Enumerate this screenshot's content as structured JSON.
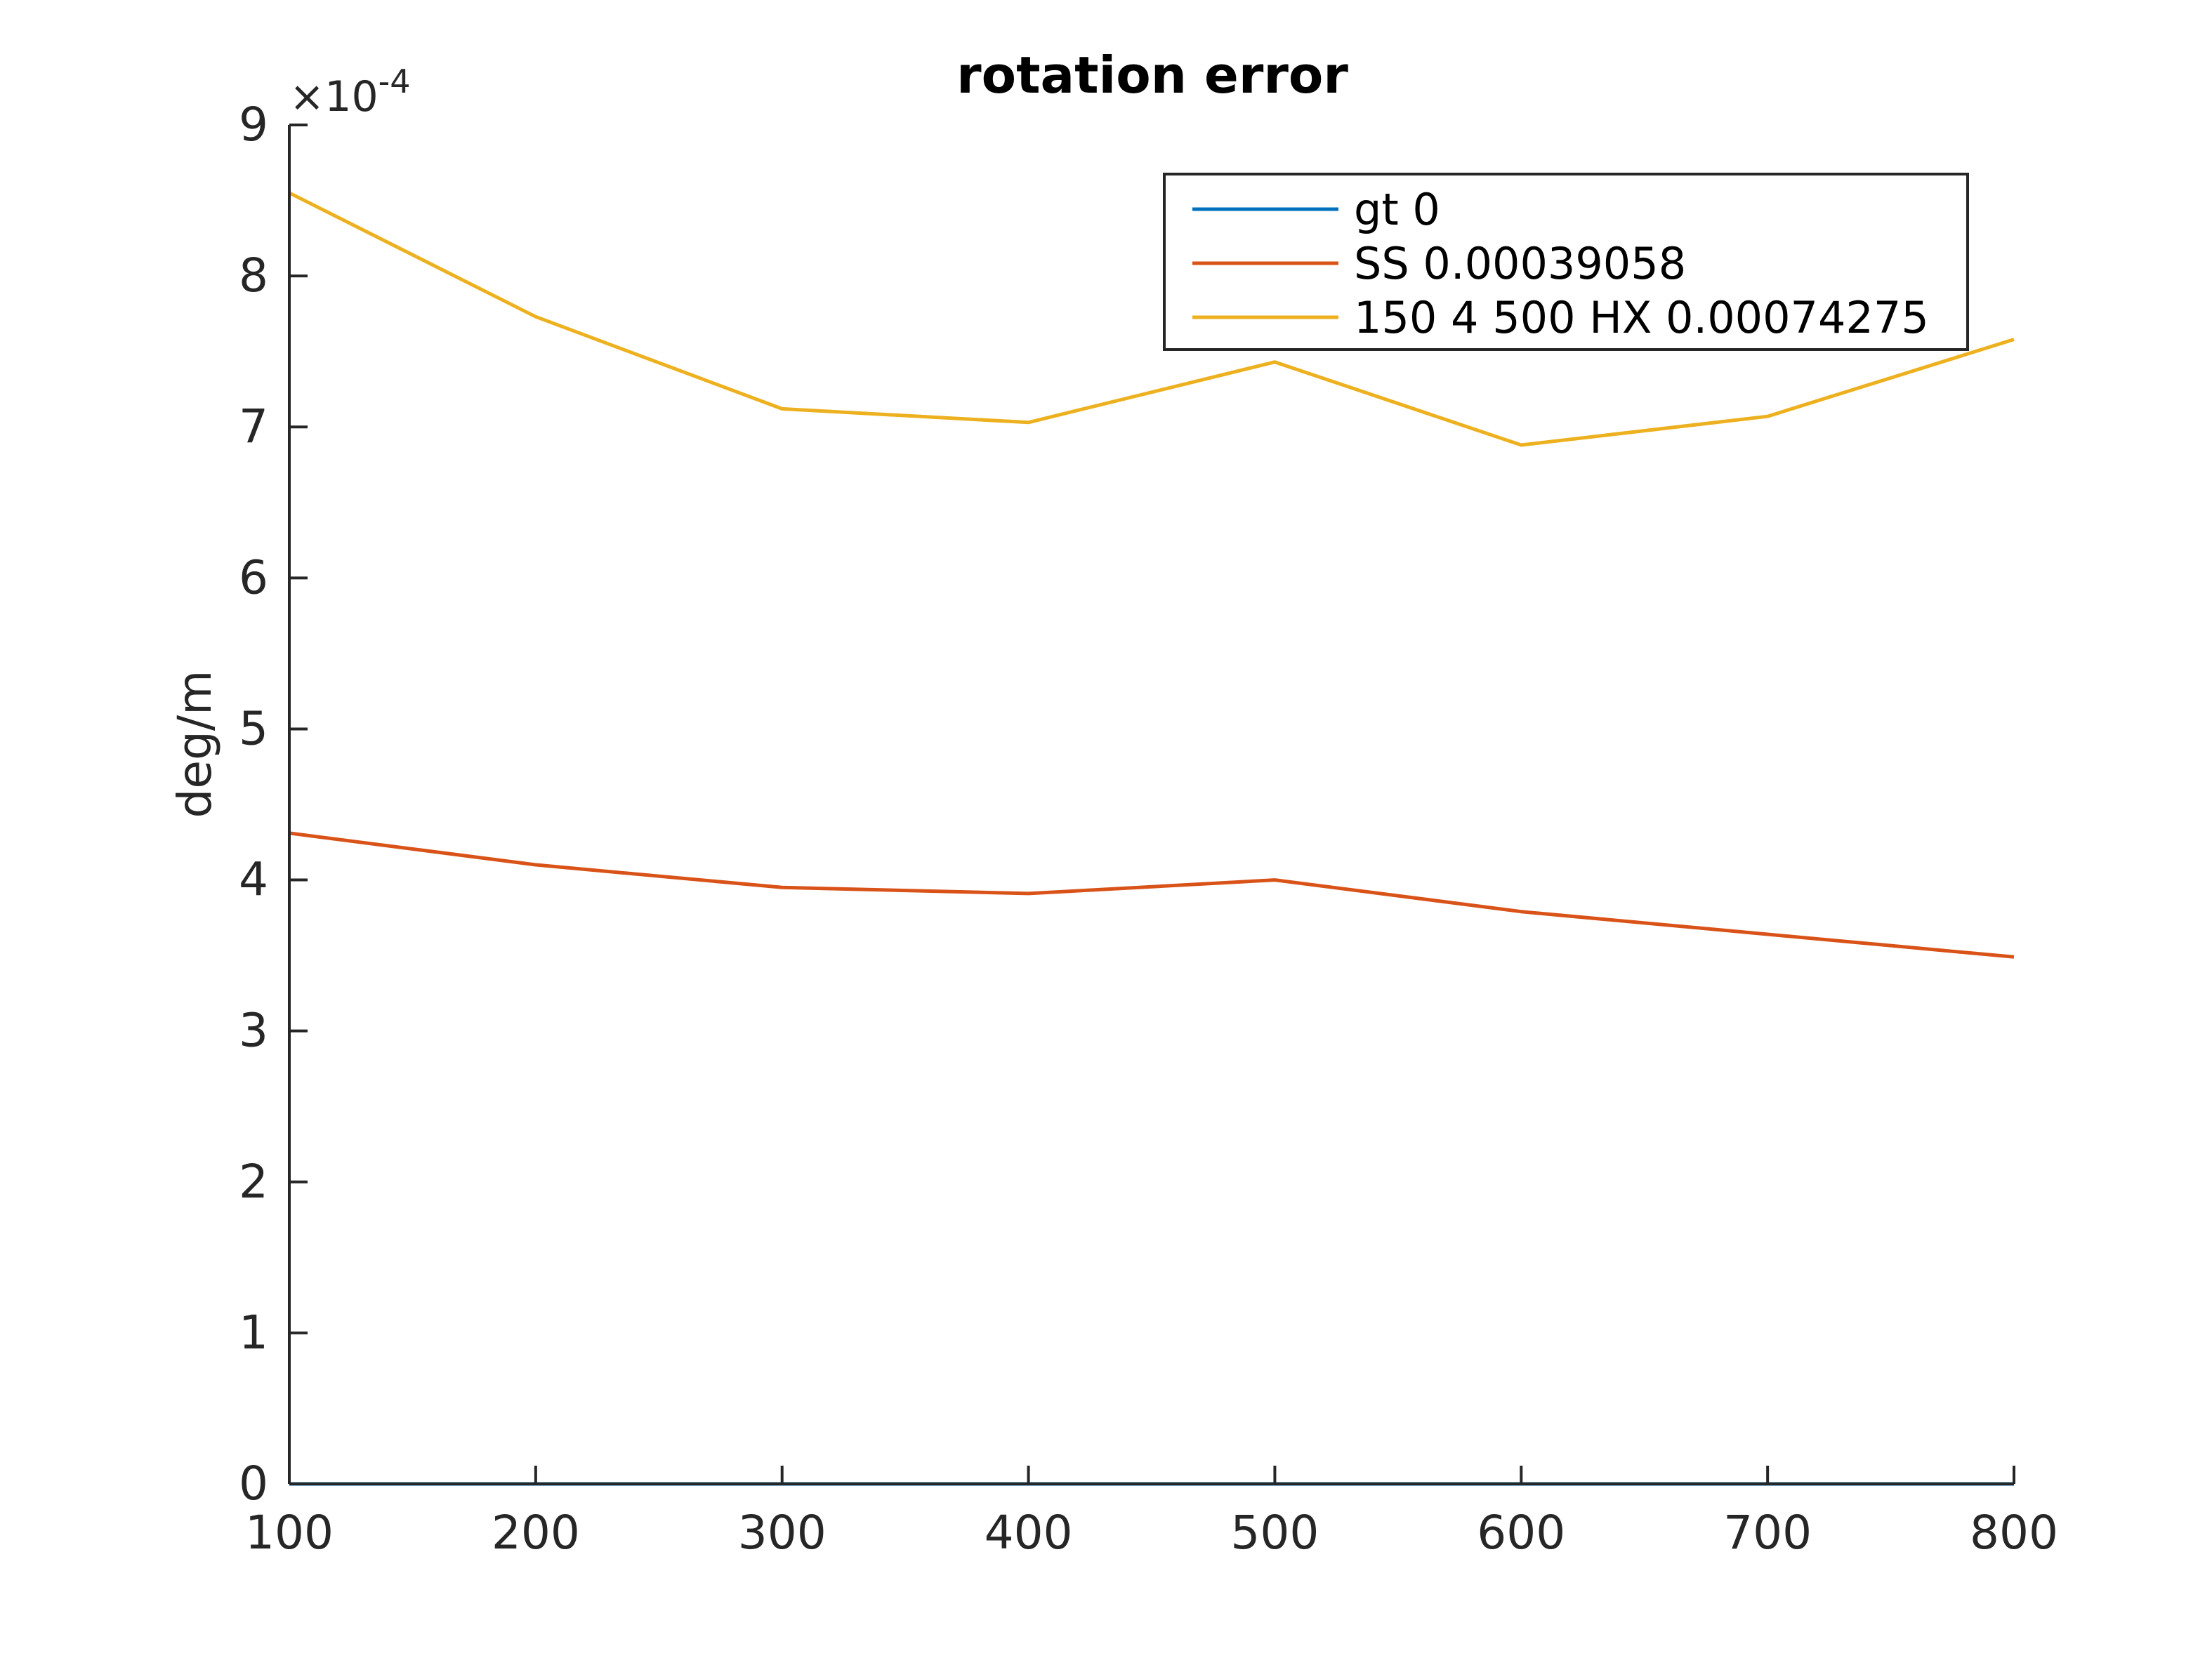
{
  "chart_data": {
    "type": "line",
    "title": "rotation error",
    "xlabel": "",
    "ylabel": "deg/m",
    "y_exponent_label": "×10",
    "y_exponent_power": "-4",
    "y_scale": 0.0001,
    "xlim": [
      100,
      800
    ],
    "ylim": [
      0,
      9
    ],
    "xticks": [
      100,
      200,
      300,
      400,
      500,
      600,
      700,
      800
    ],
    "xtick_labels": [
      "100",
      "200",
      "300",
      "400",
      "500",
      "600",
      "700",
      "800"
    ],
    "yticks": [
      0,
      1,
      2,
      3,
      4,
      5,
      6,
      7,
      8,
      9
    ],
    "ytick_labels": [
      "0",
      "1",
      "2",
      "3",
      "4",
      "5",
      "6",
      "7",
      "8",
      "9"
    ],
    "grid": false,
    "legend_position": "top-right",
    "x": [
      100,
      200,
      300,
      400,
      500,
      600,
      700,
      800
    ],
    "series": [
      {
        "name": "gt 0",
        "color": "#0072BD",
        "values": [
          0,
          0,
          0,
          0,
          0,
          0,
          0,
          0
        ]
      },
      {
        "name": "SS 0.00039058",
        "color": "#D95319",
        "values": [
          4.31,
          4.1,
          3.95,
          3.91,
          4.0,
          3.79,
          3.64,
          3.49
        ]
      },
      {
        "name": " 150 4 500 HX 0.00074275",
        "color": "#EDB120",
        "values": [
          8.55,
          7.73,
          7.12,
          7.03,
          7.43,
          6.88,
          7.07,
          7.58
        ]
      }
    ]
  }
}
